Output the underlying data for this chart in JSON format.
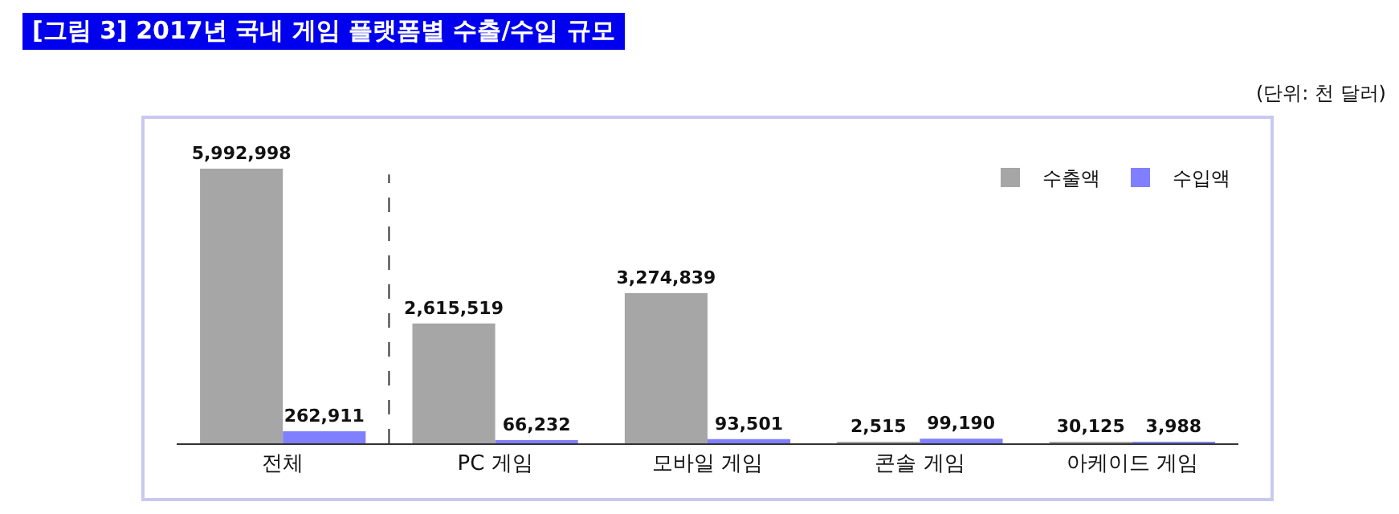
{
  "chart_data": {
    "type": "bar",
    "title": "[그림 3] 2017년 국내 게임 플랫폼별 수출/수입 규모",
    "annotations": [
      "(단위: 천 달러)"
    ],
    "categories": [
      "전체",
      "PC 게임",
      "모바일 게임",
      "콘솔 게임",
      "아케이드 게임"
    ],
    "series": [
      {
        "name": "수출액",
        "color": "#a6a6a6",
        "values": [
          5992998,
          2615519,
          3274839,
          2515,
          30125
        ],
        "value_labels": [
          "5,992,998",
          "2,615,519",
          "3,274,839",
          "2,515",
          "30,125"
        ]
      },
      {
        "name": "수입액",
        "color": "#7f7fff",
        "values": [
          262911,
          66232,
          93501,
          99190,
          3988
        ],
        "value_labels": [
          "262,911",
          "66,232",
          "93,501",
          "99,190",
          "3,988"
        ]
      }
    ],
    "legend": "top right"
  }
}
